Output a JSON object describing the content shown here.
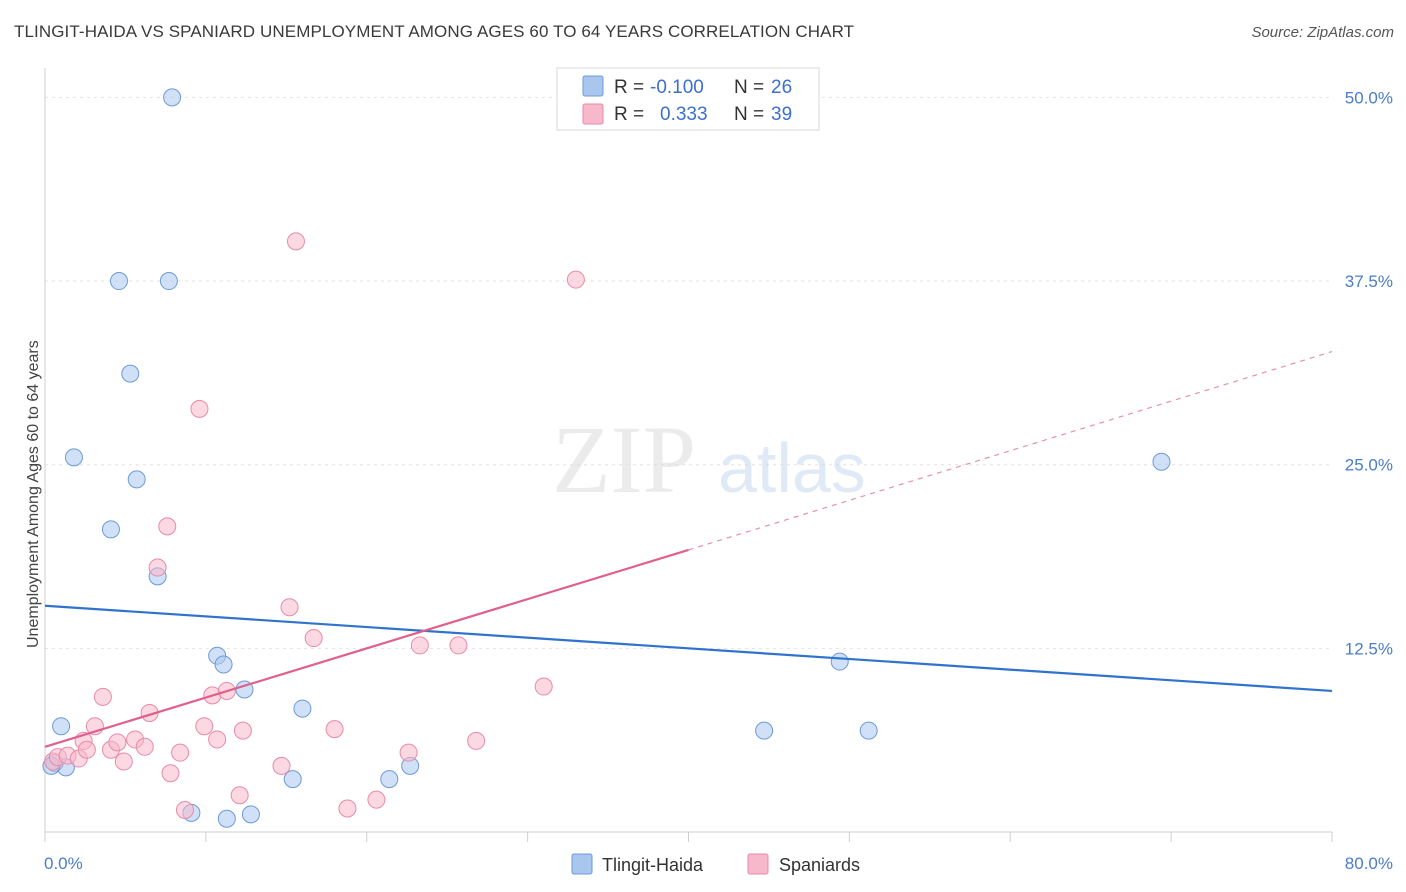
{
  "title": "TLINGIT-HAIDA VS SPANIARD UNEMPLOYMENT AMONG AGES 60 TO 64 YEARS CORRELATION CHART",
  "source": "Source: ZipAtlas.com",
  "watermark": {
    "zip": "ZIP",
    "atlas": "atlas"
  },
  "chart_data": {
    "type": "scatter",
    "xlabel": "",
    "ylabel": "Unemployment Among Ages 60 to 64 years",
    "xlim": [
      0,
      80
    ],
    "ylim": [
      0,
      52
    ],
    "x_tick_labels": [
      "0.0%",
      "80.0%"
    ],
    "y_ticks": [
      12.5,
      25.0,
      37.5,
      50.0
    ],
    "y_tick_labels": [
      "12.5%",
      "25.0%",
      "37.5%",
      "50.0%"
    ],
    "legend": [
      {
        "r_label": "R =",
        "r_value": "-0.100",
        "n_label": "N =",
        "n_value": "26"
      },
      {
        "r_label": "R =",
        "r_value": "0.333",
        "n_label": "N =",
        "n_value": "39"
      }
    ],
    "series": [
      {
        "name": "Tlingit-Haida",
        "color": "#a9c6ee",
        "stroke": "#6d9ad8",
        "trend_color": "#2f73cc",
        "trend": {
          "x0": 0,
          "y0": 15.4,
          "x1": 80,
          "y1": 9.6
        },
        "points": [
          [
            0.6,
            4.7
          ],
          [
            1.0,
            7.2
          ],
          [
            1.3,
            4.4
          ],
          [
            1.8,
            25.5
          ],
          [
            4.6,
            37.5
          ],
          [
            5.3,
            31.2
          ],
          [
            5.7,
            24.0
          ],
          [
            4.1,
            20.6
          ],
          [
            7.7,
            37.5
          ],
          [
            7.9,
            50.0
          ],
          [
            7.0,
            17.4
          ],
          [
            10.7,
            12.0
          ],
          [
            11.1,
            11.4
          ],
          [
            12.4,
            9.7
          ],
          [
            9.1,
            1.3
          ],
          [
            11.3,
            0.9
          ],
          [
            12.8,
            1.2
          ],
          [
            15.4,
            3.6
          ],
          [
            16.0,
            8.4
          ],
          [
            21.4,
            3.6
          ],
          [
            22.7,
            4.5
          ],
          [
            44.7,
            6.9
          ],
          [
            49.4,
            11.6
          ],
          [
            51.2,
            6.9
          ],
          [
            69.4,
            25.2
          ],
          [
            0.4,
            4.5
          ]
        ]
      },
      {
        "name": "Spaniards",
        "color": "#f7b8cb",
        "stroke": "#e98aa8",
        "trend_color": "#e0608b",
        "trend": {
          "x0": 0,
          "y0": 5.8,
          "x1": 40,
          "y1": 19.2
        },
        "trend_dashed": {
          "x0": 40,
          "y0": 19.2,
          "x1": 80,
          "y1": 32.7
        },
        "points": [
          [
            0.5,
            4.8
          ],
          [
            0.8,
            5.1
          ],
          [
            1.4,
            5.2
          ],
          [
            2.1,
            5.0
          ],
          [
            2.4,
            6.2
          ],
          [
            2.6,
            5.6
          ],
          [
            3.1,
            7.2
          ],
          [
            3.6,
            9.2
          ],
          [
            4.1,
            5.6
          ],
          [
            4.5,
            6.1
          ],
          [
            4.9,
            4.8
          ],
          [
            5.6,
            6.3
          ],
          [
            6.2,
            5.8
          ],
          [
            6.5,
            8.1
          ],
          [
            7.0,
            18.0
          ],
          [
            7.6,
            20.8
          ],
          [
            7.8,
            4.0
          ],
          [
            8.4,
            5.4
          ],
          [
            8.7,
            1.5
          ],
          [
            9.6,
            28.8
          ],
          [
            9.9,
            7.2
          ],
          [
            10.4,
            9.3
          ],
          [
            10.7,
            6.3
          ],
          [
            11.3,
            9.6
          ],
          [
            12.1,
            2.5
          ],
          [
            12.3,
            6.9
          ],
          [
            14.7,
            4.5
          ],
          [
            15.2,
            15.3
          ],
          [
            15.6,
            40.2
          ],
          [
            16.7,
            13.2
          ],
          [
            18.0,
            7.0
          ],
          [
            18.8,
            1.6
          ],
          [
            20.6,
            2.2
          ],
          [
            22.6,
            5.4
          ],
          [
            23.3,
            12.7
          ],
          [
            25.7,
            12.7
          ],
          [
            26.8,
            6.2
          ],
          [
            31.0,
            9.9
          ],
          [
            33.0,
            37.6
          ]
        ]
      }
    ]
  }
}
